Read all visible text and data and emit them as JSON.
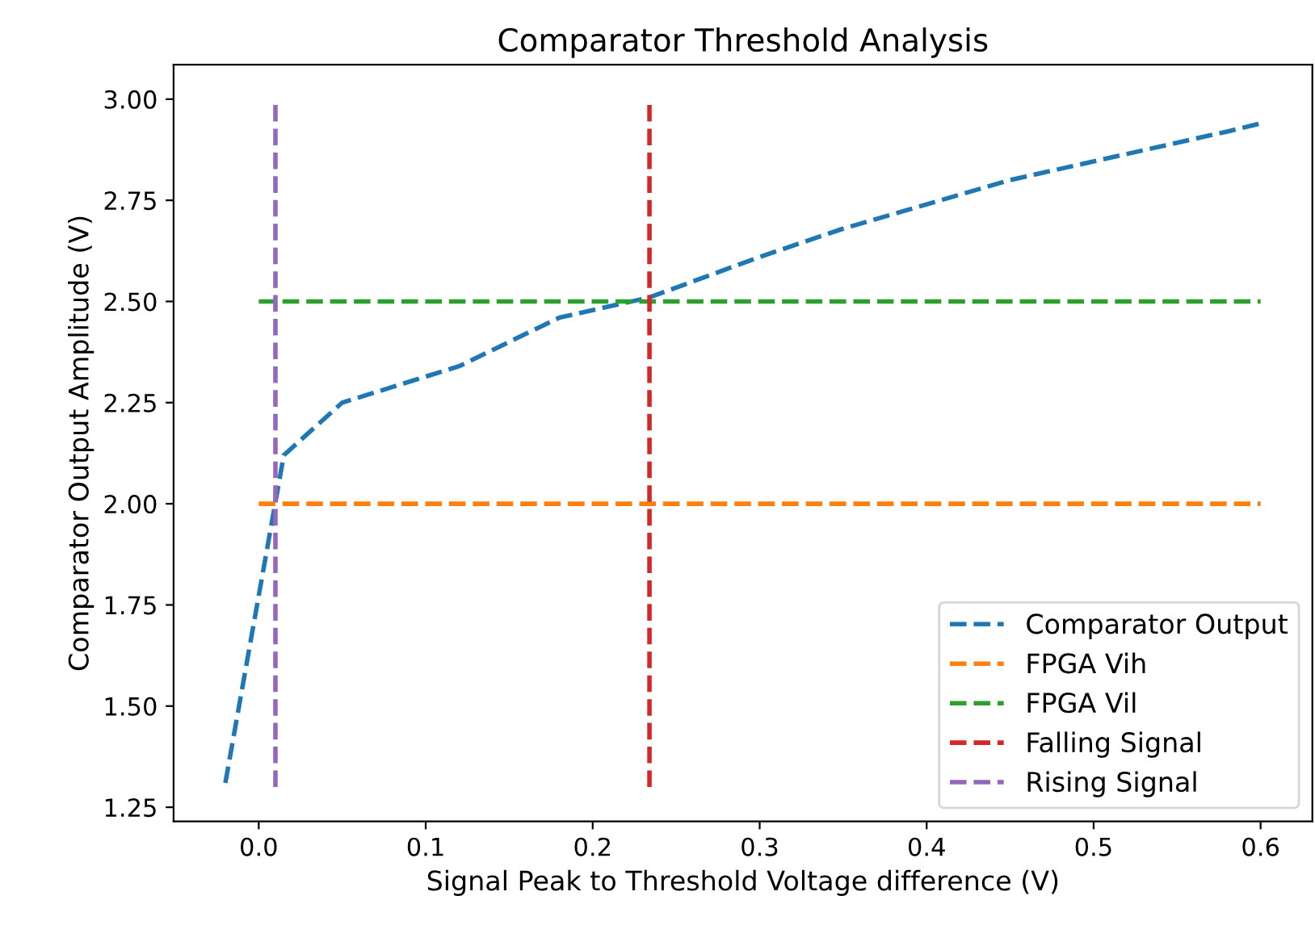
{
  "chart_data": {
    "type": "line",
    "title": "Comparator Threshold Analysis",
    "xlabel": "Signal Peak to Threshold Voltage difference (V)",
    "ylabel": "Comparator Output Amplitude (V)",
    "series": [
      {
        "name": "Comparator Output",
        "color": "#1f77b4",
        "x": [
          -0.02,
          0.015,
          0.05,
          0.12,
          0.18,
          0.234,
          0.3,
          0.35,
          0.45,
          0.58,
          0.6
        ],
        "values": [
          1.31,
          2.12,
          2.25,
          2.34,
          2.46,
          2.51,
          2.61,
          2.68,
          2.8,
          2.92,
          2.94
        ]
      },
      {
        "name": "FPGA Vih",
        "color": "#ff7f0e",
        "x": [
          0.0,
          0.6
        ],
        "values": [
          2.0,
          2.0
        ]
      },
      {
        "name": "FPGA Vil",
        "color": "#2ca02c",
        "x": [
          0.0,
          0.6
        ],
        "values": [
          2.5,
          2.5
        ]
      },
      {
        "name": "Falling Signal",
        "color": "#d62728",
        "x": [
          0.234,
          0.234
        ],
        "values": [
          1.3,
          3.0
        ]
      },
      {
        "name": "Rising Signal",
        "color": "#9467bd",
        "x": [
          0.01,
          0.01
        ],
        "values": [
          1.3,
          3.0
        ]
      }
    ],
    "xlim": [
      -0.051,
      0.631
    ],
    "ylim": [
      1.215,
      3.085
    ],
    "xticks": [
      {
        "value": 0.0,
        "label": "0.0"
      },
      0.1,
      0.2,
      0.3,
      0.4,
      0.5,
      0.6
    ],
    "yticks": [
      {
        "value": 1.25,
        "label": "1.25"
      },
      {
        "value": 1.5,
        "label": "1.50"
      },
      {
        "value": 1.75,
        "label": "1.75"
      },
      {
        "value": 2.0,
        "label": "2.00"
      },
      {
        "value": 2.25,
        "label": "2.25"
      },
      {
        "value": 2.5,
        "label": "2.50"
      },
      {
        "value": 2.75,
        "label": "2.75"
      },
      {
        "value": 3.0,
        "label": "3.00"
      }
    ],
    "legend": "bottom right",
    "line_style": "dashed",
    "marker": "none",
    "grid": false
  }
}
